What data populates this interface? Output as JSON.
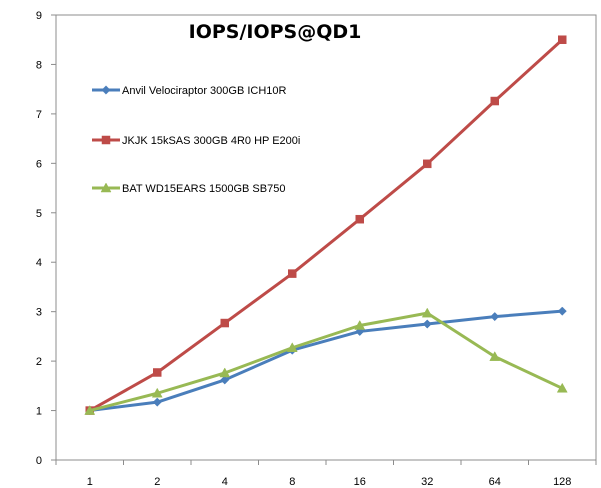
{
  "chart_data": {
    "type": "line",
    "title": "IOPS/IOPS@QD1",
    "xlabel": "",
    "ylabel": "",
    "categories": [
      "1",
      "2",
      "4",
      "8",
      "16",
      "32",
      "64",
      "128"
    ],
    "ylim": [
      0,
      9
    ],
    "yticks": [
      0,
      1,
      2,
      3,
      4,
      5,
      6,
      7,
      8,
      9
    ],
    "grid": "off",
    "legend_position": "top-left",
    "series": [
      {
        "name": "Anvil Velociraptor 300GB ICH10R",
        "color": "#4a7ebb",
        "marker": "diamond",
        "values": [
          1.0,
          1.17,
          1.62,
          2.22,
          2.6,
          2.75,
          2.9,
          3.01
        ]
      },
      {
        "name": "JKJK 15kSAS 300GB 4R0 HP E200i",
        "color": "#be4b48",
        "marker": "square",
        "values": [
          1.0,
          1.77,
          2.77,
          3.77,
          4.87,
          5.99,
          7.26,
          8.5
        ]
      },
      {
        "name": "BAT WD15EARS 1500GB SB750",
        "color": "#98b954",
        "marker": "triangle",
        "values": [
          1.0,
          1.35,
          1.76,
          2.27,
          2.72,
          2.97,
          2.09,
          1.45
        ]
      }
    ]
  }
}
